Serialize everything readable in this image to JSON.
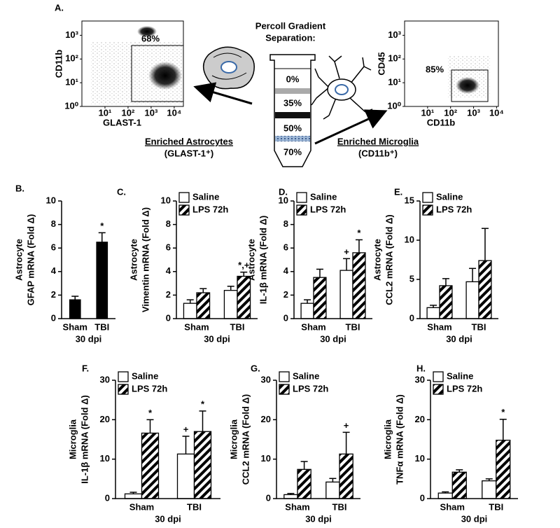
{
  "figure_label": "A.",
  "percoll": {
    "title": [
      "Percoll Gradient",
      "Separation:"
    ],
    "layers": [
      "0%",
      "35%",
      "50%",
      "70%"
    ]
  },
  "astrocytes": {
    "title": "Enriched Astrocytes",
    "marker": "(GLAST-1⁺)"
  },
  "microglia": {
    "title": "Enriched Microglia",
    "marker": "(CD11b⁺)"
  },
  "chart_data": [
    {
      "type": "flow",
      "xlabel": "GLAST-1",
      "ylabel": "CD11b",
      "gate_label": "68%",
      "xscale": "log",
      "yscale": "log",
      "xlim": [
        1,
        25000
      ],
      "ylim": [
        1,
        4000
      ],
      "xticks": [
        {
          "value": 10,
          "label": "10¹"
        },
        {
          "value": 100,
          "label": "10²"
        },
        {
          "value": 1000,
          "label": "10³"
        },
        {
          "value": 10000,
          "label": "10⁴"
        }
      ],
      "yticks": [
        {
          "value": 1,
          "label": "10⁰"
        },
        {
          "value": 10,
          "label": "10¹"
        },
        {
          "value": 100,
          "label": "10²"
        },
        {
          "value": 1000,
          "label": "10³"
        }
      ]
    },
    {
      "type": "flow",
      "xlabel": "CD11b",
      "ylabel": "CD45",
      "gate_label": "85%",
      "xscale": "log",
      "yscale": "log",
      "xlim": [
        1,
        12000
      ],
      "ylim": [
        1,
        4000
      ],
      "xticks": [
        {
          "value": 10,
          "label": "10¹"
        },
        {
          "value": 100,
          "label": "10²"
        },
        {
          "value": 1000,
          "label": "10³"
        },
        {
          "value": 10000,
          "label": "10⁴"
        }
      ],
      "yticks": [
        {
          "value": 1,
          "label": "10⁰"
        },
        {
          "value": 10,
          "label": "10¹"
        },
        {
          "value": 100,
          "label": "10²"
        },
        {
          "value": 1000,
          "label": "10³"
        }
      ]
    },
    {
      "type": "bar",
      "label": "B.",
      "ylabel": [
        "Astrocyte",
        "GFAP mRNA (Fold Δ)"
      ],
      "xlabel": "30 dpi",
      "categories": [
        "Sham",
        "TBI"
      ],
      "ylim": [
        0,
        10
      ],
      "yticks": [
        0,
        2,
        4,
        6,
        8,
        10
      ],
      "series": [
        {
          "color": "#000000",
          "values": [
            1.6,
            6.5
          ],
          "errors": [
            0.3,
            0.8
          ],
          "significance": [
            null,
            "*"
          ]
        }
      ]
    },
    {
      "type": "bar",
      "label": "C.",
      "ylabel": [
        "Astrocyte",
        "Vimentin mRNA (Fold Δ)"
      ],
      "xlabel": "30 dpi",
      "categories": [
        "Sham",
        "TBI"
      ],
      "ylim": [
        0,
        10
      ],
      "yticks": [
        0,
        2,
        4,
        6,
        8,
        10
      ],
      "series": [
        {
          "name": "Saline",
          "color": "#ffffff",
          "values": [
            1.3,
            2.4
          ],
          "errors": [
            0.3,
            0.35
          ],
          "significance": [
            null,
            null
          ]
        },
        {
          "name": "LPS 72h",
          "color": "#000000",
          "pattern": "hatch",
          "values": [
            2.2,
            3.6
          ],
          "errors": [
            0.35,
            0.35
          ],
          "significance": [
            null,
            "*,+"
          ]
        }
      ]
    },
    {
      "type": "bar",
      "label": "D.",
      "ylabel": [
        "Astrocyte",
        "IL-1β mRNA (Fold Δ)"
      ],
      "xlabel": "30 dpi",
      "categories": [
        "Sham",
        "TBI"
      ],
      "ylim": [
        0,
        10
      ],
      "yticks": [
        0,
        2,
        4,
        6,
        8,
        10
      ],
      "series": [
        {
          "name": "Saline",
          "color": "#ffffff",
          "values": [
            1.3,
            4.1
          ],
          "errors": [
            0.3,
            1.0
          ],
          "significance": [
            null,
            "+"
          ]
        },
        {
          "name": "LPS 72h",
          "color": "#000000",
          "pattern": "hatch",
          "values": [
            3.5,
            5.6
          ],
          "errors": [
            0.7,
            1.1
          ],
          "significance": [
            null,
            "*"
          ]
        }
      ]
    },
    {
      "type": "bar",
      "label": "E.",
      "ylabel": [
        "Astrocyte",
        "CCL2  mRNA (Fold Δ)"
      ],
      "xlabel": "30 dpi",
      "categories": [
        "Sham",
        "TBI"
      ],
      "ylim": [
        0,
        15
      ],
      "yticks": [
        0,
        5,
        10,
        15
      ],
      "series": [
        {
          "name": "Saline",
          "color": "#ffffff",
          "values": [
            1.4,
            4.7
          ],
          "errors": [
            0.3,
            1.7
          ],
          "significance": [
            null,
            null
          ]
        },
        {
          "name": "LPS 72h",
          "color": "#000000",
          "pattern": "hatch",
          "values": [
            4.2,
            7.4
          ],
          "errors": [
            0.9,
            4.1
          ],
          "significance": [
            null,
            null
          ]
        }
      ]
    },
    {
      "type": "bar",
      "label": "F.",
      "ylabel": [
        "Microglia",
        "IL-1β mRNA (Fold Δ)"
      ],
      "xlabel": "30 dpi",
      "categories": [
        "Sham",
        "TBI"
      ],
      "ylim": [
        0,
        30
      ],
      "yticks": [
        0,
        10,
        20,
        30
      ],
      "series": [
        {
          "name": "Saline",
          "color": "#ffffff",
          "values": [
            1.2,
            11.3
          ],
          "errors": [
            0.4,
            4.5
          ],
          "significance": [
            null,
            "+"
          ]
        },
        {
          "name": "LPS 72h",
          "color": "#000000",
          "pattern": "hatch",
          "values": [
            16.6,
            17.0
          ],
          "errors": [
            3.4,
            5.2
          ],
          "significance": [
            "*",
            "*"
          ]
        }
      ]
    },
    {
      "type": "bar",
      "label": "G.",
      "ylabel": [
        "Microglia",
        "CCL2 mRNA (Fold Δ)"
      ],
      "xlabel": "30 dpi",
      "categories": [
        "Sham",
        "TBI"
      ],
      "ylim": [
        0,
        30
      ],
      "yticks": [
        0,
        10,
        20,
        30
      ],
      "series": [
        {
          "name": "Saline",
          "color": "#ffffff",
          "values": [
            1.0,
            4.2
          ],
          "errors": [
            0.3,
            0.9
          ],
          "significance": [
            null,
            null
          ]
        },
        {
          "name": "LPS 72h",
          "color": "#000000",
          "pattern": "hatch",
          "values": [
            7.4,
            11.3
          ],
          "errors": [
            2.0,
            5.5
          ],
          "significance": [
            null,
            "+"
          ]
        }
      ]
    },
    {
      "type": "bar",
      "label": "H.",
      "ylabel": [
        "Microglia",
        "TNFα mRNA (Fold Δ)"
      ],
      "xlabel": "30 dpi",
      "categories": [
        "Sham",
        "TBI"
      ],
      "ylim": [
        0,
        30
      ],
      "yticks": [
        0,
        10,
        20,
        30
      ],
      "series": [
        {
          "name": "Saline",
          "color": "#ffffff",
          "values": [
            1.4,
            4.5
          ],
          "errors": [
            0.3,
            0.5
          ],
          "significance": [
            null,
            null
          ]
        },
        {
          "name": "LPS 72h",
          "color": "#000000",
          "pattern": "hatch",
          "values": [
            6.7,
            14.8
          ],
          "errors": [
            0.6,
            5.3
          ],
          "significance": [
            null,
            "*"
          ]
        }
      ]
    }
  ]
}
